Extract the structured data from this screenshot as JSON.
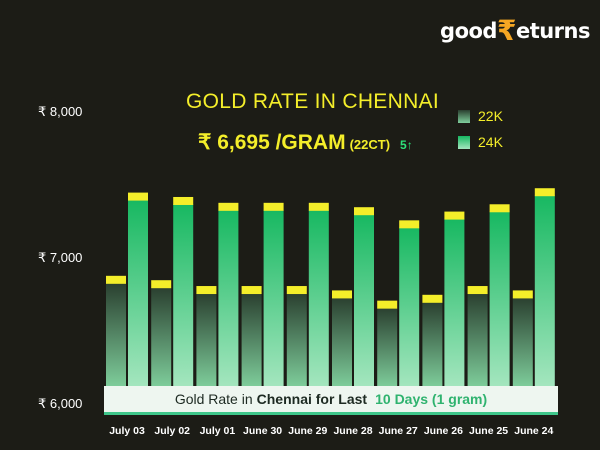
{
  "brand": {
    "prefix": "good",
    "symbol": "₹",
    "suffix": "eturns"
  },
  "header": {
    "title": "GOLD RATE IN CHENNAI",
    "price": "₹ 6,695 /GRAM",
    "price_unit": "(22CT)",
    "change": "5↑"
  },
  "caption": {
    "part1": "Gold Rate in",
    "part2": "Chennai for Last",
    "part3": "10 Days (1 gram)"
  },
  "colors": {
    "bg": "#1c1c16",
    "accent": "#f4ee2a",
    "k22": "#2b4a35",
    "k24": "#22c46e"
  },
  "chart_data": {
    "type": "bar",
    "categories": [
      "July 03",
      "July 02",
      "July 01",
      "June 30",
      "June 29",
      "June 28",
      "June 27",
      "June 26",
      "June 25",
      "June 24"
    ],
    "series": [
      {
        "name": "22K",
        "values": [
          6830,
          6800,
          6760,
          6760,
          6760,
          6730,
          6660,
          6700,
          6760,
          6730
        ]
      },
      {
        "name": "24K",
        "values": [
          7400,
          7370,
          7330,
          7330,
          7330,
          7300,
          7210,
          7270,
          7320,
          7430
        ]
      }
    ],
    "yticks": [
      6000,
      7000,
      8000
    ],
    "ytick_labels": [
      "₹ 6,000",
      "₹ 7,000",
      "₹ 8,000"
    ],
    "ylim": [
      6000,
      8000
    ],
    "legend": "top-right"
  }
}
